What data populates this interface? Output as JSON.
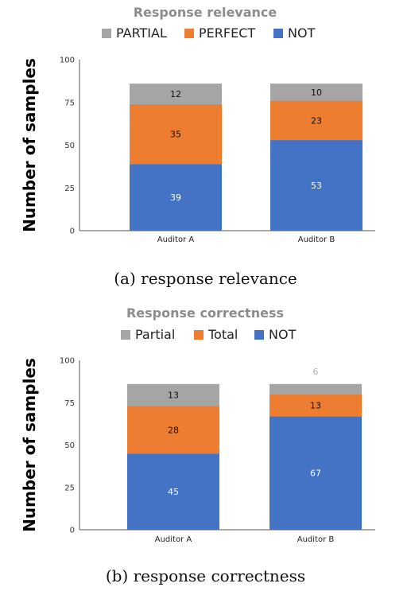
{
  "chart_data": [
    {
      "type": "bar",
      "stacked": true,
      "title": "Response relevance",
      "ylabel": "Number of samples",
      "ylim": [
        0,
        100
      ],
      "yticks": [
        0,
        25,
        50,
        75,
        100
      ],
      "categories": [
        "Auditor A",
        "Auditor B"
      ],
      "legend_position": "top",
      "series": [
        {
          "name": "NOT",
          "values": [
            39,
            53
          ],
          "color": "#4472c4",
          "label_color": "#ffffff"
        },
        {
          "name": "PERFECT",
          "values": [
            35,
            23
          ],
          "color": "#ed7d31",
          "label_color": "#111111"
        },
        {
          "name": "PARTIAL",
          "values": [
            12,
            10
          ],
          "color": "#a5a5a5",
          "label_color": "#111111"
        }
      ],
      "legend_order": [
        "PARTIAL",
        "PERFECT",
        "NOT"
      ],
      "caption": "(a)  response relevance"
    },
    {
      "type": "bar",
      "stacked": true,
      "title": "Response correctness",
      "ylabel": "Number of samples",
      "ylim": [
        0,
        100
      ],
      "yticks": [
        0,
        25,
        50,
        75,
        100
      ],
      "categories": [
        "Auditor A",
        "Auditor B"
      ],
      "legend_position": "top",
      "series": [
        {
          "name": "NOT",
          "values": [
            45,
            67
          ],
          "color": "#4472c4",
          "label_color": "#ffffff"
        },
        {
          "name": "Total",
          "values": [
            28,
            13
          ],
          "color": "#ed7d31",
          "label_color": "#111111"
        },
        {
          "name": "Partial",
          "values": [
            13,
            6
          ],
          "color": "#a5a5a5",
          "label_color": "#111111"
        }
      ],
      "legend_order": [
        "Partial",
        "Total",
        "NOT"
      ],
      "caption": "(b)  response correctness"
    }
  ]
}
